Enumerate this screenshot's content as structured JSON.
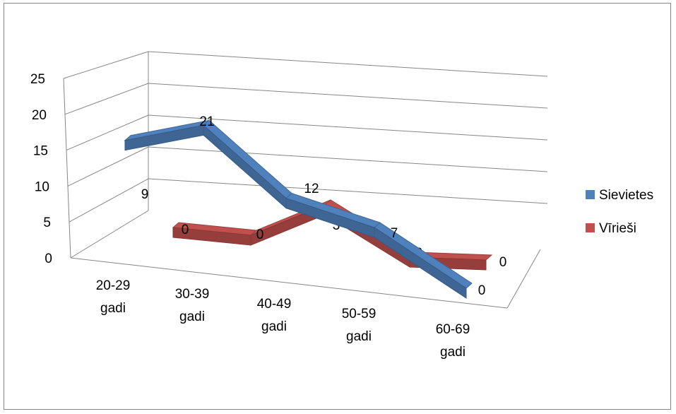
{
  "chart_data": {
    "type": "line",
    "title": "",
    "xlabel": "",
    "ylabel": "",
    "categories": [
      "20-29 gadi",
      "30-39 gadi",
      "40-49 gadi",
      "50-59 gadi",
      "60-69 gadi"
    ],
    "category_lines": [
      [
        "20-29",
        "gadi"
      ],
      [
        "30-39",
        "gadi"
      ],
      [
        "40-49",
        "gadi"
      ],
      [
        "50-59",
        "gadi"
      ],
      [
        "60-69",
        "gadi"
      ]
    ],
    "series": [
      {
        "name": "Sievietes",
        "values": [
          9,
          21,
          12,
          7,
          0
        ],
        "color": "#4F81BD"
      },
      {
        "name": "Vīrieši",
        "values": [
          0,
          0,
          3,
          0,
          0
        ],
        "color": "#C0504D"
      }
    ],
    "y_ticks": [
      "0",
      "5",
      "10",
      "15",
      "20",
      "25"
    ],
    "ylim": [
      0,
      25
    ],
    "grid": true,
    "legend": "right",
    "style": "3d-line"
  }
}
